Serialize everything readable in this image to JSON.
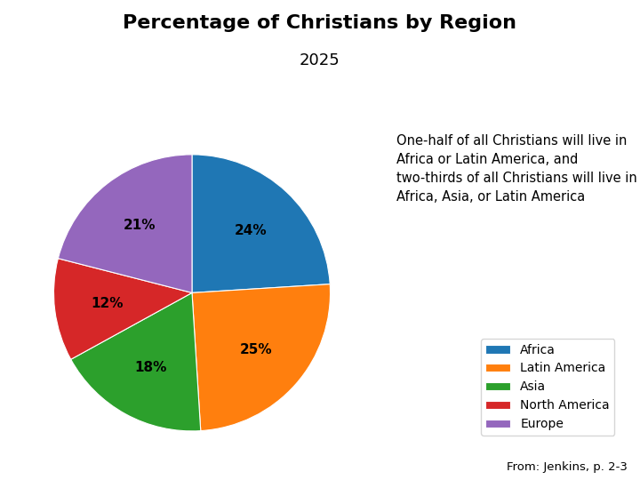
{
  "chart_data": {
    "type": "pie",
    "title": "Percentage of Christians by Region",
    "subtitle": "2025",
    "categories": [
      "Africa",
      "Latin America",
      "Asia",
      "North America",
      "Europe"
    ],
    "values": [
      24,
      25,
      18,
      12,
      21
    ],
    "value_labels": [
      "24%",
      "25%",
      "18%",
      "12%",
      "21%"
    ],
    "data_labels": true,
    "legend": "lower right",
    "annotations": [
      "One-half of all Christians will live in Africa or Latin America, and two-thirds of all Christians will live in Africa, Asia, or Latin America",
      "From: Jenkins, p. 2-3"
    ]
  }
}
